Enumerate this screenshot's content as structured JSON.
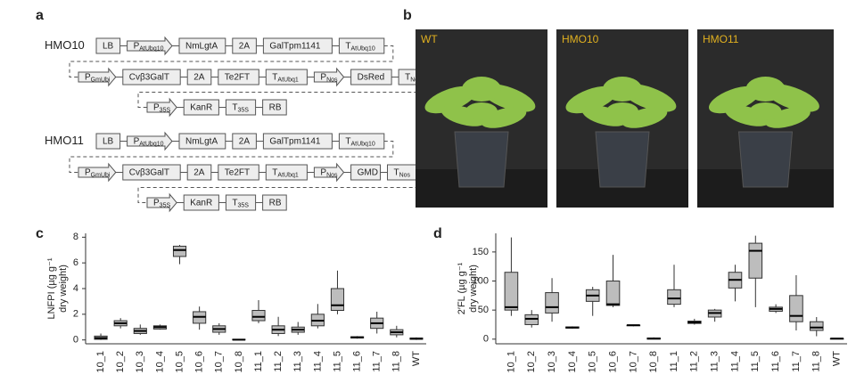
{
  "panel_labels": [
    "a",
    "b",
    "c",
    "d"
  ],
  "constructs": [
    {
      "name": "HMO10",
      "rows": [
        [
          {
            "text": "LB"
          },
          {
            "text": "P",
            "sub": "AtUbq10"
          },
          {
            "text": "NmLgtA"
          },
          {
            "text": "2A"
          },
          {
            "text": "GalTpm1141"
          },
          {
            "text": "T",
            "sub": "AtUbq10"
          }
        ],
        [
          {
            "text": "P",
            "sub": "GmUbi"
          },
          {
            "text": "Cvβ3GalT"
          },
          {
            "text": "2A"
          },
          {
            "text": "Te2FT"
          },
          {
            "text": "T",
            "sub": "AtUbq1"
          },
          {
            "text": "P",
            "sub": "Nos"
          },
          {
            "text": "DsRed"
          },
          {
            "text": "T",
            "sub": "Nos"
          }
        ],
        [
          {
            "text": "P",
            "sub": "35S"
          },
          {
            "text": "KanR"
          },
          {
            "text": "T",
            "sub": "35S"
          },
          {
            "text": "RB"
          }
        ]
      ]
    },
    {
      "name": "HMO11",
      "rows": [
        [
          {
            "text": "LB"
          },
          {
            "text": "P",
            "sub": "AtUbq10"
          },
          {
            "text": "NmLgtA"
          },
          {
            "text": "2A"
          },
          {
            "text": "GalTpm1141"
          },
          {
            "text": "T",
            "sub": "AtUbq10"
          }
        ],
        [
          {
            "text": "P",
            "sub": "GmUbi"
          },
          {
            "text": "Cvβ3GalT"
          },
          {
            "text": "2A"
          },
          {
            "text": "Te2FT"
          },
          {
            "text": "T",
            "sub": "AtUbq1"
          },
          {
            "text": "P",
            "sub": "Nos"
          },
          {
            "text": "GMD"
          },
          {
            "text": "T",
            "sub": "Nos"
          }
        ],
        [
          {
            "text": "P",
            "sub": "35S"
          },
          {
            "text": "KanR"
          },
          {
            "text": "T",
            "sub": "35S"
          },
          {
            "text": "RB"
          }
        ]
      ]
    }
  ],
  "photos": [
    "WT",
    "HMO10",
    "HMO11"
  ],
  "chart_data": [
    {
      "type": "box",
      "ylabel": [
        "LNFPI (µg g⁻¹",
        "dry weight)"
      ],
      "categories": [
        "10_1",
        "10_2",
        "10_3",
        "10_4",
        "10_5",
        "10_6",
        "10_7",
        "10_8",
        "11_1",
        "11_2",
        "11_3",
        "11_4",
        "11_5",
        "11_6",
        "11_7",
        "11_8",
        "WT"
      ],
      "min": [
        0,
        0.9,
        0.4,
        0.8,
        5.9,
        0.8,
        0.4,
        0,
        1.3,
        0.3,
        0.4,
        0.9,
        2.0,
        0.1,
        0.5,
        0.2,
        0
      ],
      "q1": [
        0.05,
        1.1,
        0.5,
        0.85,
        6.5,
        1.3,
        0.6,
        0,
        1.5,
        0.5,
        0.6,
        1.1,
        2.3,
        0.15,
        0.9,
        0.4,
        0.05
      ],
      "median": [
        0.15,
        1.3,
        0.7,
        1.0,
        7.0,
        1.8,
        0.85,
        0.02,
        1.8,
        0.8,
        0.8,
        1.5,
        2.7,
        0.2,
        1.3,
        0.6,
        0.1
      ],
      "q3": [
        0.3,
        1.5,
        0.9,
        1.1,
        7.3,
        2.2,
        1.1,
        0.05,
        2.3,
        1.1,
        1.0,
        2.0,
        4.0,
        0.25,
        1.7,
        0.8,
        0.15
      ],
      "max": [
        0.5,
        1.7,
        1.2,
        1.2,
        7.4,
        2.6,
        1.3,
        0.08,
        3.1,
        1.8,
        1.4,
        2.8,
        5.4,
        0.3,
        2.2,
        1.1,
        0.2
      ],
      "color": "#bdbdbd",
      "ylim": [
        -0.3,
        8.3
      ],
      "yticks": [
        0,
        2,
        4,
        6,
        8
      ]
    },
    {
      "type": "box",
      "ylabel": [
        "2′FL (µg g⁻¹",
        "dry weight)"
      ],
      "categories": [
        "10_1",
        "10_2",
        "10_3",
        "10_4",
        "10_5",
        "10_6",
        "10_7",
        "10_8",
        "11_1",
        "11_2",
        "11_3",
        "11_4",
        "11_5",
        "11_6",
        "11_7",
        "11_8",
        "WT"
      ],
      "min": [
        40,
        20,
        30,
        18,
        40,
        55,
        22,
        0,
        55,
        25,
        30,
        65,
        55,
        45,
        15,
        5,
        0
      ],
      "q1": [
        50,
        25,
        45,
        19,
        65,
        58,
        23,
        0,
        60,
        27,
        38,
        88,
        105,
        48,
        30,
        15,
        0
      ],
      "median": [
        55,
        35,
        55,
        20,
        75,
        60,
        24,
        1,
        70,
        29,
        45,
        102,
        152,
        52,
        40,
        20,
        1
      ],
      "q3": [
        115,
        42,
        80,
        21,
        85,
        100,
        24,
        2,
        85,
        31,
        50,
        115,
        165,
        55,
        75,
        30,
        1
      ],
      "max": [
        175,
        50,
        105,
        22,
        90,
        145,
        25,
        3,
        128,
        35,
        52,
        128,
        178,
        60,
        110,
        38,
        2
      ],
      "color": "#bdbdbd",
      "ylim": [
        -8,
        182
      ],
      "yticks": [
        0,
        50,
        100,
        150
      ]
    }
  ]
}
